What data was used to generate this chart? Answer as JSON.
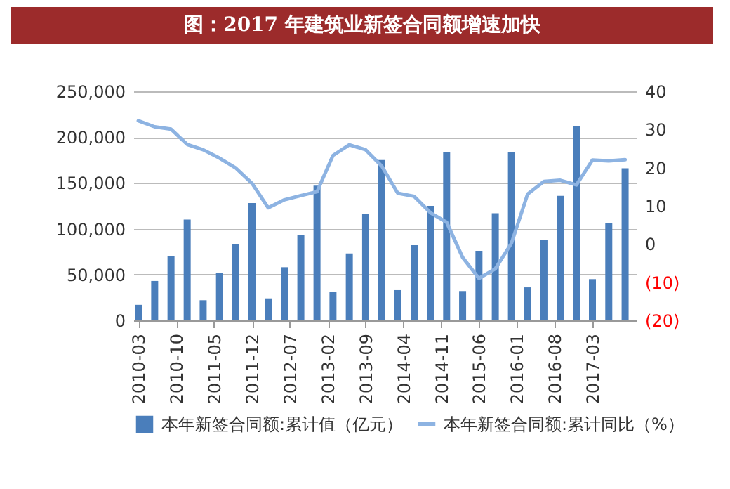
{
  "chart_data": {
    "type": "bar",
    "title": "图：2017 年建筑业新签合同额增速加快",
    "x": [
      "2010-03",
      "2010-06",
      "2010-09",
      "2010-12",
      "2011-03",
      "2011-06",
      "2011-09",
      "2011-12",
      "2012-03",
      "2012-06",
      "2012-09",
      "2012-12",
      "2013-03",
      "2013-06",
      "2013-09",
      "2013-12",
      "2014-03",
      "2014-06",
      "2014-09",
      "2014-12",
      "2015-03",
      "2015-06",
      "2015-09",
      "2015-12",
      "2016-03",
      "2016-06",
      "2016-09",
      "2016-12",
      "2017-03",
      "2017-06",
      "2017-09"
    ],
    "series": [
      {
        "name": "本年新签合同额:累计值（亿元）",
        "color": "#4a7ebb",
        "values": [
          17000,
          43000,
          70000,
          110000,
          22000,
          52000,
          83000,
          128000,
          24000,
          58000,
          93000,
          147000,
          31000,
          73000,
          116000,
          175000,
          33000,
          82000,
          125000,
          184000,
          32000,
          76000,
          117000,
          184000,
          36000,
          88000,
          136000,
          212000,
          45000,
          106000,
          166000
        ]
      },
      {
        "name": "本年新签合同额:累计同比（%）",
        "type": "line",
        "axis": "y2",
        "color": "#8db3e2",
        "values": [
          32.3,
          30.7,
          30.1,
          26.1,
          24.7,
          22.5,
          19.9,
          15.9,
          9.5,
          11.6,
          12.7,
          13.7,
          23.2,
          26,
          24.7,
          20.4,
          13.3,
          12.5,
          8.2,
          5.7,
          -3.5,
          -9,
          -6.5,
          0.2,
          13.1,
          16.4,
          16.7,
          15.5,
          22,
          21.8,
          22.1
        ]
      }
    ],
    "xlim": [
      "2010-02-01",
      "2017-11-01"
    ],
    "xticks": [
      "2010-03",
      "2010-10",
      "2011-05",
      "2011-12",
      "2012-07",
      "2013-02",
      "2013-09",
      "2014-04",
      "2014-11",
      "2015-06",
      "2016-01",
      "2016-08",
      "2017-03"
    ],
    "ylim": [
      0,
      250000
    ],
    "yticks": [
      {
        "value": 0,
        "label": "0"
      },
      {
        "value": 50000,
        "label": "50,000"
      },
      {
        "value": 100000,
        "label": "100,000"
      },
      {
        "value": 150000,
        "label": "150,000"
      },
      {
        "value": 200000,
        "label": "200,000"
      },
      {
        "value": 250000,
        "label": "250,000"
      }
    ],
    "y2lim": [
      -20,
      40
    ],
    "y2ticks": [
      {
        "value": -20,
        "label": "(20)"
      },
      {
        "value": -10,
        "label": "(10)"
      },
      {
        "value": 0,
        "label": "0"
      },
      {
        "value": 10,
        "label": "10"
      },
      {
        "value": 20,
        "label": "20"
      },
      {
        "value": 30,
        "label": "30"
      },
      {
        "value": 40,
        "label": "40"
      }
    ],
    "grid": "y",
    "legend": "bottom",
    "line_style": "solid",
    "marker": "none"
  }
}
